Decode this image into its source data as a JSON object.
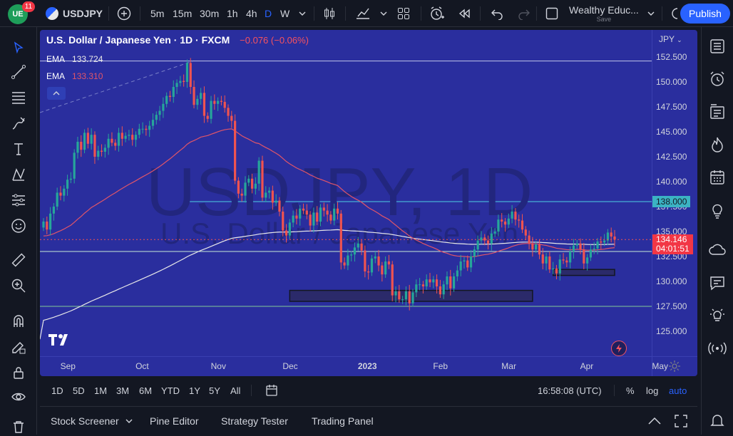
{
  "topbar": {
    "notifications": "11",
    "symbol": "USDJPY",
    "intervals": [
      "5m",
      "15m",
      "30m",
      "1h",
      "4h",
      "D",
      "W"
    ],
    "active_interval": "D",
    "layout_name": "Wealthy Educ...",
    "layout_status": "Save",
    "publish_label": "Publish"
  },
  "legend": {
    "title": "U.S. Dollar / Japanese Yen · 1D · FXCM",
    "change": "−0.076 (−0.06%)",
    "ema1_label": "EMA",
    "ema1_value": "133.724",
    "ema2_label": "EMA",
    "ema2_value": "133.310",
    "collapse_icon": "chevron-up-icon"
  },
  "watermark": {
    "line1": "USDJPY, 1D",
    "line2": "U.S. Dollar / Japanese Yen"
  },
  "price_scale": {
    "currency": "JPY",
    "labels": [
      "152.500",
      "150.000",
      "147.500",
      "145.000",
      "142.500",
      "140.000",
      "137.500",
      "135.000",
      "132.500",
      "130.000",
      "127.500",
      "125.000"
    ],
    "level_tag": "138.000",
    "last_price": "134.146",
    "countdown": "04:01:51"
  },
  "time_scale": {
    "labels": [
      "Sep",
      "Oct",
      "Nov",
      "Dec",
      "2023",
      "Feb",
      "Mar",
      "Apr",
      "May"
    ]
  },
  "bottom_range": {
    "ranges": [
      "1D",
      "5D",
      "1M",
      "3M",
      "6M",
      "YTD",
      "1Y",
      "5Y",
      "All"
    ],
    "clock": "16:58:08 (UTC)",
    "percent": "%",
    "log": "log",
    "auto": "auto"
  },
  "bottom_panel": {
    "tabs": [
      "Stock Screener",
      "Pine Editor",
      "Strategy Tester",
      "Trading Panel"
    ]
  },
  "colors": {
    "chart_bg": "#2a2e9e",
    "bull": "#26a69a",
    "bear": "#ef5350",
    "ema_slow": "#e8e8e8",
    "ema_fast": "#e05569",
    "accent": "#2962ff"
  },
  "chart_data": {
    "type": "candlestick",
    "y_range": [
      123,
      154
    ],
    "start": "2022-08-22",
    "horizontal_levels": [
      152.1,
      138.0,
      133.0,
      127.5
    ],
    "zones": [
      {
        "from": "2022-12-01",
        "to": "2023-03-10",
        "top": 129.1,
        "bottom": 128.0
      },
      {
        "from": "2023-03-18",
        "to": "2023-04-20",
        "top": 131.2,
        "bottom": 130.6
      }
    ],
    "closes": [
      136.0,
      135.2,
      136.8,
      137.5,
      138.9,
      138.6,
      139.3,
      140.2,
      140.3,
      142.9,
      144.0,
      143.2,
      144.9,
      143.8,
      144.7,
      142.5,
      143.1,
      143.0,
      143.4,
      144.3,
      143.9,
      143.6,
      144.9,
      144.3,
      144.6,
      144.7,
      144.2,
      144.7,
      145.3,
      145.3,
      145.2,
      145.6,
      146.2,
      146.7,
      147.1,
      147.8,
      148.6,
      148.5,
      149.5,
      149.9,
      150.1,
      150.0,
      151.9,
      149.5,
      147.7,
      148.3,
      148.9,
      146.6,
      146.3,
      148.1,
      147.8,
      148.1,
      148.0,
      147.4,
      146.6,
      146.1,
      140.1,
      138.8,
      138.6,
      139.9,
      140.3,
      139.3,
      139.8,
      142.1,
      138.4,
      138.9,
      139.1,
      137.9,
      138.1,
      137.0,
      135.1,
      134.6,
      135.9,
      136.6,
      136.3,
      137.3,
      137.1,
      136.7,
      135.6,
      136.9,
      136.0,
      137.4,
      137.1,
      136.7,
      136.1,
      137.3,
      136.8,
      131.9,
      131.6,
      132.6,
      132.7,
      133.4,
      133.8,
      133.1,
      131.0,
      130.9,
      132.3,
      132.5,
      131.6,
      130.7,
      132.0,
      131.7,
      128.6,
      129.0,
      128.2,
      128.2,
      129.0,
      127.8,
      128.9,
      129.7,
      129.7,
      129.5,
      130.2,
      129.9,
      130.2,
      129.5,
      128.7,
      129.7,
      130.5,
      129.3,
      130.5,
      131.1,
      132.0,
      132.1,
      131.4,
      132.5,
      133.2,
      134.1,
      134.4,
      134.1,
      133.8,
      134.8,
      135.0,
      136.2,
      136.0,
      135.7,
      136.3,
      137.0,
      136.2,
      136.1,
      135.2,
      134.6,
      133.8,
      133.2,
      133.7,
      132.7,
      131.8,
      132.5,
      131.2,
      131.3,
      130.8,
      132.2,
      132.1,
      131.9,
      133.0,
      133.6,
      133.8,
      133.2,
      131.8,
      132.4,
      133.2,
      133.3,
      134.0,
      133.9,
      134.1,
      134.9,
      134.5,
      134.2
    ]
  }
}
